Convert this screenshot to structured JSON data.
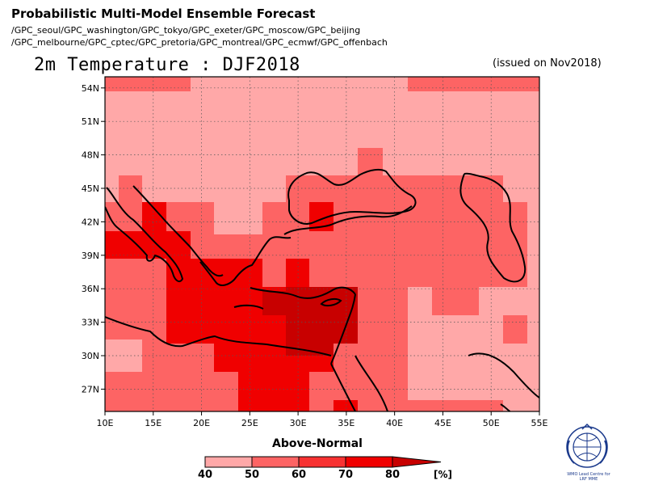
{
  "header": {
    "title": "Probabilistic Multi-Model Ensemble Forecast",
    "sources_line1": "/GPC_seoul/GPC_washington/GPC_tokyo/GPC_exeter/GPC_moscow/GPC_beijing",
    "sources_line2": "/GPC_melbourne/GPC_cptec/GPC_pretoria/GPC_montreal/GPC_ecmwf/GPC_offenbach",
    "variable_title": "2m Temperature : DJF2018",
    "issued": "(issued on Nov2018)"
  },
  "map": {
    "lon_range": [
      10,
      55
    ],
    "lat_range": [
      25,
      55
    ],
    "lon_ticks": [
      "10E",
      "15E",
      "20E",
      "25E",
      "30E",
      "35E",
      "40E",
      "45E",
      "50E",
      "55E"
    ],
    "lat_ticks": [
      "54N",
      "51N",
      "48N",
      "45N",
      "42N",
      "39N",
      "36N",
      "33N",
      "30N",
      "27N"
    ],
    "grid": true
  },
  "legend": {
    "title": "Above-Normal",
    "ticks": [
      "40",
      "50",
      "60",
      "70",
      "80"
    ],
    "unit": "[%]",
    "colors": [
      "#ffa8a8",
      "#fd6464",
      "#f83232",
      "#f00000",
      "#c80000"
    ]
  },
  "logo": {
    "caption": "WMO Lead Centre for LRF MME"
  }
}
